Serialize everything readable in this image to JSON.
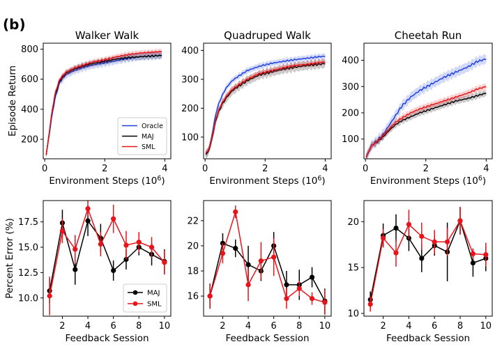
{
  "panel_label": "(b)",
  "colors": {
    "oracle": "#1f3fe0",
    "maj": "#000000",
    "sml": "#e8141b"
  },
  "chart_data": [
    {
      "type": "line",
      "title": "Walker Walk",
      "xlabel": "Environment Steps (10^6)",
      "ylabel": "Episode Return",
      "xlim": [
        -0.05,
        4.2
      ],
      "ylim": [
        70,
        840
      ],
      "xticks": [
        0,
        2,
        4
      ],
      "yticks": [
        200,
        400,
        600,
        800
      ],
      "legend": [
        "Oracle",
        "MAJ",
        "SML"
      ],
      "legend_position": "lower-right",
      "series": [
        {
          "name": "Oracle",
          "x": [
            0.05,
            0.15,
            0.25,
            0.35,
            0.5,
            0.7,
            1,
            1.3,
            1.6,
            2,
            2.4,
            2.8,
            3.2,
            3.6,
            3.9
          ],
          "y": [
            100,
            230,
            370,
            480,
            580,
            630,
            660,
            680,
            695,
            710,
            725,
            740,
            750,
            755,
            760
          ],
          "band": 25
        },
        {
          "name": "MAJ",
          "x": [
            0.05,
            0.15,
            0.25,
            0.35,
            0.5,
            0.7,
            1,
            1.3,
            1.6,
            2,
            2.4,
            2.8,
            3.2,
            3.6,
            3.9
          ],
          "y": [
            95,
            240,
            390,
            500,
            590,
            640,
            670,
            690,
            705,
            720,
            735,
            745,
            750,
            755,
            758
          ],
          "band": 20
        },
        {
          "name": "SML",
          "x": [
            0.05,
            0.15,
            0.25,
            0.35,
            0.5,
            0.7,
            1,
            1.3,
            1.6,
            2,
            2.4,
            2.8,
            3.2,
            3.6,
            3.9
          ],
          "y": [
            95,
            245,
            395,
            510,
            600,
            645,
            675,
            695,
            715,
            730,
            750,
            765,
            775,
            780,
            785
          ],
          "band": 18
        }
      ]
    },
    {
      "type": "line",
      "title": "Quadruped Walk",
      "xlabel": "Environment Steps (10^6)",
      "ylabel": "",
      "xlim": [
        -0.05,
        4.2
      ],
      "ylim": [
        25,
        425
      ],
      "xticks": [
        0,
        2,
        4
      ],
      "yticks": [
        100,
        200,
        300,
        400
      ],
      "legend": [],
      "series": [
        {
          "name": "Oracle",
          "x": [
            0.02,
            0.1,
            0.2,
            0.3,
            0.4,
            0.55,
            0.7,
            0.9,
            1.1,
            1.4,
            1.8,
            2.2,
            2.6,
            3,
            3.4,
            3.8,
            4
          ],
          "y": [
            40,
            50,
            90,
            150,
            200,
            240,
            270,
            295,
            310,
            330,
            345,
            355,
            362,
            368,
            373,
            378,
            380
          ],
          "band": 10
        },
        {
          "name": "MAJ",
          "x": [
            0.02,
            0.1,
            0.2,
            0.3,
            0.4,
            0.55,
            0.7,
            0.9,
            1.1,
            1.4,
            1.8,
            2.2,
            2.6,
            3,
            3.4,
            3.8,
            4
          ],
          "y": [
            40,
            48,
            80,
            130,
            175,
            210,
            235,
            260,
            275,
            295,
            315,
            325,
            335,
            342,
            348,
            352,
            355
          ],
          "band": 15
        },
        {
          "name": "SML",
          "x": [
            0.02,
            0.1,
            0.2,
            0.3,
            0.4,
            0.55,
            0.7,
            0.9,
            1.1,
            1.4,
            1.8,
            2.2,
            2.6,
            3,
            3.4,
            3.8,
            4
          ],
          "y": [
            45,
            52,
            85,
            135,
            180,
            215,
            240,
            265,
            280,
            300,
            320,
            330,
            340,
            348,
            352,
            358,
            360
          ],
          "band": 10
        }
      ]
    },
    {
      "type": "line",
      "title": "Cheetah Run",
      "xlabel": "Environment Steps (10^6)",
      "ylabel": "",
      "xlim": [
        -0.05,
        4.2
      ],
      "ylim": [
        25,
        465
      ],
      "xticks": [
        0,
        2,
        4
      ],
      "yticks": [
        100,
        200,
        300,
        400
      ],
      "legend": [],
      "series": [
        {
          "name": "Oracle",
          "x": [
            0.02,
            0.2,
            0.4,
            0.6,
            0.8,
            1,
            1.2,
            1.5,
            1.8,
            2.2,
            2.6,
            3,
            3.4,
            3.7,
            4
          ],
          "y": [
            30,
            75,
            95,
            120,
            155,
            190,
            225,
            260,
            285,
            310,
            335,
            355,
            375,
            395,
            405
          ],
          "band": 18
        },
        {
          "name": "MAJ",
          "x": [
            0.02,
            0.2,
            0.4,
            0.6,
            0.8,
            1,
            1.2,
            1.5,
            1.8,
            2.2,
            2.6,
            3,
            3.4,
            3.7,
            4
          ],
          "y": [
            30,
            75,
            90,
            110,
            135,
            155,
            170,
            185,
            200,
            215,
            230,
            245,
            255,
            265,
            275
          ],
          "band": 12
        },
        {
          "name": "SML",
          "x": [
            0.02,
            0.2,
            0.4,
            0.6,
            0.8,
            1,
            1.2,
            1.5,
            1.8,
            2.2,
            2.6,
            3,
            3.4,
            3.7,
            4
          ],
          "y": [
            30,
            75,
            92,
            115,
            140,
            165,
            180,
            200,
            215,
            230,
            245,
            260,
            275,
            290,
            300
          ],
          "band": 12
        }
      ]
    },
    {
      "type": "line",
      "title": "",
      "xlabel": "Feedback Session",
      "ylabel": "Percent Error (%)",
      "xlim": [
        0.5,
        10.5
      ],
      "ylim": [
        8.2,
        19.6
      ],
      "xticks": [
        2,
        4,
        6,
        8,
        10
      ],
      "yticks": [
        10.0,
        12.5,
        15.0,
        17.5
      ],
      "ytick_labels": [
        "10.0",
        "12.5",
        "15.0",
        "17.5"
      ],
      "legend": [
        "MAJ",
        "SML"
      ],
      "legend_position": "lower-right",
      "series": [
        {
          "name": "MAJ",
          "x": [
            1,
            2,
            3,
            4,
            5,
            6,
            7,
            8,
            9,
            10
          ],
          "y": [
            10.7,
            17.4,
            12.8,
            17.6,
            15.9,
            12.7,
            13.8,
            15.0,
            14.3,
            13.6
          ],
          "err": [
            1.2,
            1.3,
            1.5,
            1.5,
            1.4,
            1.0,
            1.0,
            0.8,
            1.1,
            1.2
          ]
        },
        {
          "name": "SML",
          "x": [
            1,
            2,
            3,
            4,
            5,
            6,
            7,
            8,
            9,
            10
          ],
          "y": [
            10.2,
            16.6,
            14.8,
            18.8,
            15.3,
            17.8,
            15.2,
            15.5,
            15.0,
            13.5
          ],
          "err": [
            1.9,
            1.2,
            1.4,
            0.8,
            1.2,
            1.4,
            1.4,
            1.0,
            1.0,
            1.2
          ]
        }
      ]
    },
    {
      "type": "line",
      "title": "",
      "xlabel": "Feedback Session",
      "ylabel": "",
      "xlim": [
        0.5,
        10.5
      ],
      "ylim": [
        14.4,
        23.6
      ],
      "xticks": [
        2,
        4,
        6,
        8,
        10
      ],
      "yticks": [
        16,
        18,
        20,
        22
      ],
      "ytick_labels": [
        "16",
        "18",
        "20",
        "22"
      ],
      "legend": [],
      "series": [
        {
          "name": "MAJ",
          "x": [
            1,
            2,
            3,
            4,
            5,
            6,
            7,
            8,
            9,
            10
          ],
          "y": [
            16.0,
            20.2,
            19.8,
            18.5,
            18.0,
            20.0,
            16.9,
            16.9,
            17.5,
            15.6
          ],
          "err": [
            1.0,
            0.8,
            0.7,
            1.5,
            0.8,
            1.1,
            1.1,
            1.2,
            0.8,
            1.0
          ]
        },
        {
          "name": "SML",
          "x": [
            1,
            2,
            3,
            4,
            5,
            6,
            7,
            8,
            9,
            10
          ],
          "y": [
            16.0,
            19.4,
            22.7,
            16.9,
            18.8,
            19.1,
            15.8,
            16.6,
            15.8,
            15.5
          ],
          "err": [
            1.0,
            0.8,
            0.5,
            1.3,
            1.5,
            1.5,
            0.8,
            0.6,
            0.5,
            1.0
          ]
        }
      ]
    },
    {
      "type": "line",
      "title": "",
      "xlabel": "Feedback Session",
      "ylabel": "",
      "xlim": [
        0.5,
        10.5
      ],
      "ylim": [
        9.7,
        22.3
      ],
      "xticks": [
        2,
        4,
        6,
        8,
        10
      ],
      "yticks": [
        10,
        15,
        20
      ],
      "ytick_labels": [
        "10",
        "15",
        "20"
      ],
      "legend": [],
      "series": [
        {
          "name": "MAJ",
          "x": [
            1,
            2,
            3,
            4,
            5,
            6,
            7,
            8,
            9,
            10
          ],
          "y": [
            11.5,
            18.5,
            19.3,
            18.2,
            16.0,
            17.4,
            16.7,
            20.1,
            15.5,
            16.0
          ],
          "err": [
            0.9,
            1.3,
            1.5,
            1.4,
            1.5,
            1.1,
            3.2,
            1.5,
            1.5,
            1.4
          ]
        },
        {
          "name": "SML",
          "x": [
            1,
            2,
            3,
            4,
            5,
            6,
            7,
            8,
            9,
            10
          ],
          "y": [
            11.0,
            18.2,
            16.6,
            19.7,
            18.4,
            17.8,
            17.8,
            20.1,
            16.5,
            16.4
          ],
          "err": [
            0.8,
            1.0,
            1.5,
            1.6,
            1.5,
            1.3,
            1.5,
            1.5,
            0.6,
            1.3
          ]
        }
      ]
    }
  ]
}
